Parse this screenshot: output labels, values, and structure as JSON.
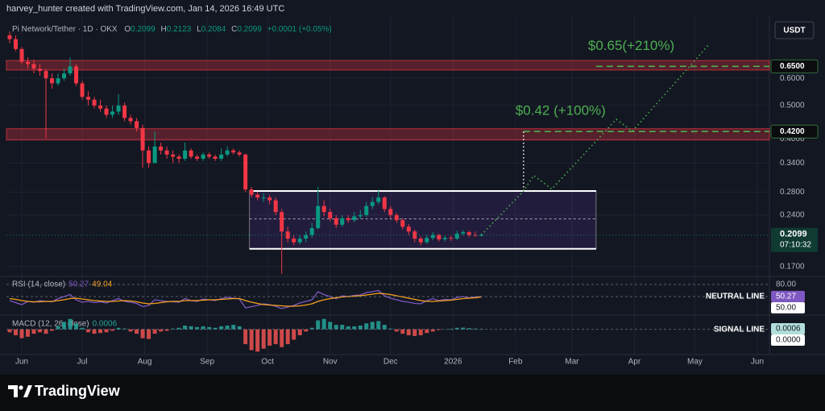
{
  "header": {
    "credit": "harvey_hunter created with TradingView.com, Jan 14, 2026 16:49 UTC",
    "symbol": "Pi Network/Tether · 1D · OKX",
    "o_label": "O",
    "h_label": "H",
    "l_label": "L",
    "c_label": "C",
    "change": "+0.0001 (+0.05%)",
    "currency": "USDT"
  },
  "footer": {
    "logo": "TradingView"
  },
  "chart_data": {
    "type": "candlestick",
    "log_scale": true,
    "grid": true,
    "up_color": "#089981",
    "down_color": "#f23645",
    "x": [
      -6,
      -3,
      0,
      3,
      6,
      9,
      12,
      15,
      18,
      21,
      24,
      27,
      30,
      33,
      36,
      39,
      42,
      45,
      48,
      51,
      54,
      57,
      60,
      63,
      66,
      69,
      72,
      75,
      78,
      81,
      84,
      87,
      90,
      93,
      96,
      99,
      102,
      105,
      108,
      111,
      114,
      117,
      120,
      123,
      126,
      129,
      132,
      135,
      138,
      141,
      144,
      147,
      150,
      153,
      156,
      159,
      162,
      165,
      168,
      171,
      174,
      177,
      180,
      183,
      186,
      189,
      192,
      195,
      198,
      201,
      204,
      207,
      210,
      213,
      216,
      219,
      222,
      225,
      228
    ],
    "open": [
      0.8,
      0.78,
      0.73,
      0.67,
      0.66,
      0.64,
      0.63,
      0.6,
      0.58,
      0.6,
      0.62,
      0.65,
      0.58,
      0.53,
      0.52,
      0.5,
      0.49,
      0.47,
      0.48,
      0.5,
      0.46,
      0.45,
      0.43,
      0.37,
      0.34,
      0.38,
      0.37,
      0.36,
      0.355,
      0.35,
      0.37,
      0.355,
      0.35,
      0.36,
      0.355,
      0.35,
      0.36,
      0.37,
      0.365,
      0.36,
      0.285,
      0.275,
      0.27,
      0.27,
      0.265,
      0.245,
      0.215,
      0.205,
      0.2,
      0.205,
      0.21,
      0.22,
      0.255,
      0.245,
      0.235,
      0.225,
      0.235,
      0.232,
      0.238,
      0.24,
      0.255,
      0.262,
      0.27,
      0.25,
      0.24,
      0.232,
      0.222,
      0.215,
      0.205,
      0.2,
      0.206,
      0.21,
      0.204,
      0.206,
      0.205,
      0.212,
      0.214,
      0.21,
      0.2099
    ],
    "high": [
      0.82,
      0.8,
      0.74,
      0.69,
      0.68,
      0.66,
      0.64,
      0.62,
      0.62,
      0.64,
      0.69,
      0.66,
      0.59,
      0.55,
      0.53,
      0.52,
      0.5,
      0.5,
      0.54,
      0.51,
      0.47,
      0.46,
      0.44,
      0.38,
      0.42,
      0.39,
      0.38,
      0.37,
      0.36,
      0.39,
      0.375,
      0.36,
      0.365,
      0.365,
      0.36,
      0.375,
      0.38,
      0.375,
      0.37,
      0.362,
      0.29,
      0.28,
      0.278,
      0.275,
      0.27,
      0.25,
      0.222,
      0.21,
      0.21,
      0.215,
      0.228,
      0.29,
      0.265,
      0.25,
      0.24,
      0.24,
      0.24,
      0.245,
      0.248,
      0.262,
      0.27,
      0.285,
      0.272,
      0.255,
      0.244,
      0.235,
      0.226,
      0.218,
      0.208,
      0.21,
      0.214,
      0.212,
      0.209,
      0.209,
      0.216,
      0.217,
      0.216,
      0.215,
      0.2123
    ],
    "low": [
      0.76,
      0.72,
      0.66,
      0.64,
      0.62,
      0.61,
      0.4,
      0.56,
      0.57,
      0.59,
      0.61,
      0.57,
      0.52,
      0.5,
      0.49,
      0.48,
      0.46,
      0.46,
      0.47,
      0.45,
      0.44,
      0.42,
      0.33,
      0.33,
      0.34,
      0.36,
      0.35,
      0.34,
      0.34,
      0.345,
      0.35,
      0.345,
      0.345,
      0.35,
      0.345,
      0.345,
      0.355,
      0.36,
      0.355,
      0.28,
      0.27,
      0.265,
      0.262,
      0.258,
      0.24,
      0.162,
      0.2,
      0.196,
      0.197,
      0.2,
      0.206,
      0.218,
      0.238,
      0.23,
      0.22,
      0.222,
      0.228,
      0.229,
      0.234,
      0.237,
      0.25,
      0.258,
      0.245,
      0.235,
      0.228,
      0.218,
      0.21,
      0.2,
      0.196,
      0.198,
      0.203,
      0.201,
      0.201,
      0.202,
      0.203,
      0.209,
      0.207,
      0.208,
      0.2084
    ],
    "close": [
      0.78,
      0.73,
      0.67,
      0.66,
      0.64,
      0.63,
      0.6,
      0.58,
      0.6,
      0.62,
      0.65,
      0.58,
      0.53,
      0.52,
      0.5,
      0.49,
      0.47,
      0.48,
      0.5,
      0.46,
      0.45,
      0.43,
      0.37,
      0.34,
      0.38,
      0.37,
      0.36,
      0.355,
      0.35,
      0.37,
      0.355,
      0.35,
      0.36,
      0.355,
      0.35,
      0.36,
      0.37,
      0.365,
      0.36,
      0.285,
      0.275,
      0.27,
      0.27,
      0.265,
      0.245,
      0.215,
      0.205,
      0.2,
      0.205,
      0.21,
      0.22,
      0.255,
      0.245,
      0.235,
      0.225,
      0.235,
      0.232,
      0.238,
      0.24,
      0.255,
      0.262,
      0.27,
      0.25,
      0.24,
      0.232,
      0.222,
      0.215,
      0.205,
      0.2,
      0.206,
      0.21,
      0.204,
      0.206,
      0.205,
      0.212,
      0.214,
      0.21,
      0.2098,
      0.2099
    ],
    "xlim": [
      -7.6,
      371
    ],
    "xticks": [
      {
        "value": 0,
        "label": "Jun"
      },
      {
        "value": 30,
        "label": "Jul"
      },
      {
        "value": 61,
        "label": "Aug"
      },
      {
        "value": 92,
        "label": "Sep"
      },
      {
        "value": 122,
        "label": "Oct"
      },
      {
        "value": 153,
        "label": "Nov"
      },
      {
        "value": 183,
        "label": "Dec"
      },
      {
        "value": 214,
        "label": "2026"
      },
      {
        "value": 245,
        "label": "Feb"
      },
      {
        "value": 273,
        "label": "Mar"
      },
      {
        "value": 304,
        "label": "Apr"
      },
      {
        "value": 334,
        "label": "May"
      },
      {
        "value": 365,
        "label": "Jun"
      }
    ],
    "ylim": [
      0.16,
      0.91
    ],
    "yticks": [
      {
        "value": 0.6,
        "label": "0.6000"
      },
      {
        "value": 0.5,
        "label": "0.5000"
      },
      {
        "value": 0.4,
        "label": "0.4000"
      },
      {
        "value": 0.34,
        "label": "0.3400"
      },
      {
        "value": 0.28,
        "label": "0.2800"
      },
      {
        "value": 0.24,
        "label": "0.2400"
      },
      {
        "value": 0.17,
        "label": "0.1700"
      }
    ],
    "countdown": "07:10:32",
    "zones": [
      {
        "from": 0.634,
        "to": 0.676,
        "color": "#f23645"
      },
      {
        "from": 0.397,
        "to": 0.428,
        "color": "#f23645"
      }
    ],
    "target_color": "#4caf50",
    "targets": [
      {
        "value": 0.42,
        "label": "0.4200",
        "x_from": 249,
        "text": "$0.42 (+100%)"
      },
      {
        "value": 0.65,
        "label": "0.6500",
        "x_from": 285,
        "text": "$0.65(+210%)"
      }
    ],
    "range_box": {
      "x": [
        113,
        285
      ],
      "top": 0.282,
      "bottom": 0.1915,
      "mid": 0.234
    },
    "projection": {
      "x": [
        228,
        249,
        254,
        263,
        295,
        303,
        341
      ],
      "values": [
        0.2099,
        0.282,
        0.313,
        0.2856,
        0.456,
        0.421,
        0.753
      ]
    },
    "panes": [
      {
        "type": "line",
        "title": "RSI (14, close)",
        "series": [
          {
            "color": "#7e57c2",
            "values": [
              40,
              35,
              30,
              38,
              36,
              40,
              38,
              37,
              45,
              50,
              55,
              42,
              36,
              38,
              35,
              37,
              34,
              40,
              45,
              38,
              36,
              33,
              25,
              28,
              42,
              40,
              38,
              37,
              36,
              45,
              40,
              38,
              44,
              42,
              40,
              45,
              48,
              46,
              44,
              22,
              25,
              28,
              32,
              30,
              26,
              20,
              24,
              28,
              34,
              38,
              42,
              62,
              55,
              50,
              45,
              52,
              50,
              53,
              54,
              60,
              62,
              65,
              52,
              46,
              42,
              38,
              36,
              33,
              32,
              40,
              45,
              40,
              43,
              42,
              48,
              50,
              47,
              49,
              50.27
            ]
          },
          {
            "color": "#f7a21b",
            "values": [
              45,
              43,
              40,
              38,
              37,
              37,
              38,
              38,
              40,
              42,
              45,
              46,
              44,
              42,
              40,
              39,
              38,
              38,
              39,
              40,
              39,
              37,
              34,
              32,
              33,
              35,
              37,
              38,
              38,
              40,
              40,
              40,
              41,
              42,
              42,
              43,
              44,
              45,
              45,
              40,
              36,
              33,
              30,
              29,
              28,
              27,
              26,
              26,
              27,
              29,
              32,
              38,
              42,
              45,
              47,
              49,
              50,
              51,
              52,
              54,
              56,
              58,
              57,
              55,
              52,
              49,
              46,
              43,
              40,
              38,
              38,
              39,
              40,
              41,
              43,
              45,
              46,
              47,
              49.04
            ]
          }
        ],
        "ylim": [
          6,
          100
        ],
        "yticks": [
          {
            "value": 80,
            "label": "80.00"
          },
          {
            "value": 50,
            "label": "50.00"
          }
        ],
        "note": "NEUTRAL LINE"
      },
      {
        "type": "bar",
        "title": "MACD (12, 26, close)",
        "up_color": "#26a69a",
        "down_color": "#ef5350",
        "values": [
          -0.004,
          -0.008,
          -0.012,
          -0.01,
          -0.006,
          -0.004,
          -0.006,
          -0.002,
          0.004,
          0.01,
          0.014,
          0.008,
          0.002,
          -0.004,
          -0.006,
          -0.005,
          -0.004,
          -0.002,
          0.002,
          0.001,
          -0.003,
          -0.006,
          -0.012,
          -0.013,
          -0.006,
          -0.003,
          -0.002,
          0.001,
          0.002,
          0.005,
          0.004,
          0.003,
          0.004,
          0.003,
          0.002,
          0.004,
          0.005,
          0.006,
          0.004,
          -0.02,
          -0.028,
          -0.03,
          -0.026,
          -0.022,
          -0.02,
          -0.024,
          -0.02,
          -0.014,
          -0.008,
          -0.003,
          0.002,
          0.012,
          0.014,
          0.01,
          0.006,
          0.006,
          0.004,
          0.004,
          0.005,
          0.008,
          0.01,
          0.011,
          0.006,
          0.001,
          -0.003,
          -0.006,
          -0.008,
          -0.009,
          -0.008,
          -0.005,
          -0.003,
          -0.001,
          0.0002,
          0.0008,
          0.002,
          0.0022,
          0.0015,
          0.001,
          0.0006
        ],
        "ylim": [
          -0.034,
          0.018
        ],
        "yticks": [
          {
            "value": 0,
            "label": "0.0000"
          }
        ],
        "note": "SIGNAL LINE"
      }
    ]
  }
}
